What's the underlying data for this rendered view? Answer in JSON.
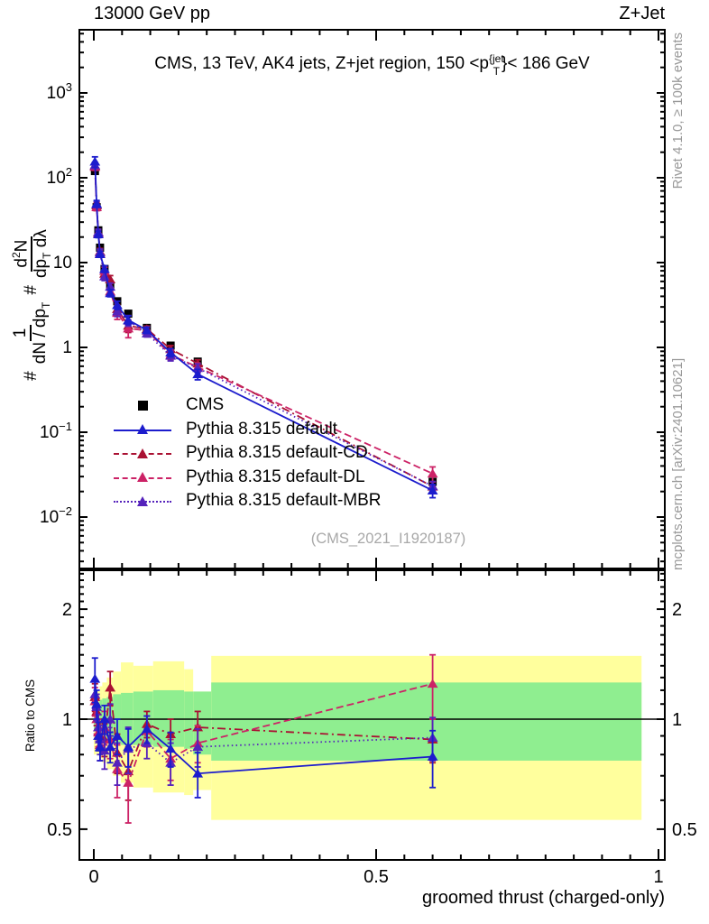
{
  "header": {
    "beam": "13000 GeV pp",
    "process": "Z+Jet"
  },
  "panel_title": {
    "pre": "CMS, 13 TeV, AK4 jets, Z+jet region, 150 <p",
    "sup": "{jet",
    "sub": "T",
    "post": "}< 186 GeV"
  },
  "watermark": "(CMS_2021_I1920187)",
  "side_notes": {
    "top": "Rivet 4.1.0, ≥ 100k events",
    "bottom": "mcplots.cern.ch [arXiv:2401.10621]"
  },
  "axes": {
    "x_label": "groomed thrust (charged-only)",
    "ratio_label": "Ratio to CMS",
    "y_formula": {
      "hash1": "#",
      "num1": "1",
      "den1_pre": "dN / dp",
      "den1_sub": "T",
      "hash2": "#",
      "num2_pre": "d",
      "num2_sup": "2",
      "num2_post": "N",
      "den2_pre": "dp",
      "den2_sub": "T",
      "den2_post": " dλ"
    }
  },
  "legend": {
    "items": [
      {
        "id": "cms",
        "label": "CMS",
        "marker": "square",
        "line": "none",
        "color": "#000000"
      },
      {
        "id": "default",
        "label": "Pythia 8.315 default",
        "marker": "triangle",
        "line": "solid",
        "color": "#1c1ccd"
      },
      {
        "id": "cd",
        "label": "Pythia 8.315 default-CD",
        "marker": "triangle",
        "line": "dashdot",
        "color": "#aa1133"
      },
      {
        "id": "dl",
        "label": "Pythia 8.315 default-DL",
        "marker": "triangle",
        "line": "dashed",
        "color": "#cc2266"
      },
      {
        "id": "mbr",
        "label": "Pythia 8.315 default-MBR",
        "marker": "triangle",
        "line": "dotted",
        "color": "#5522bb"
      }
    ]
  },
  "colors": {
    "frame": "#000000",
    "band_yellow": "#ffff9d",
    "band_green": "#8fee90",
    "gray_text": "#999999"
  },
  "chart_data": {
    "type": "line",
    "title": "CMS, 13 TeV, AK4 jets, Z+jet region, 150 < pT{jet} < 186 GeV",
    "xlabel": "groomed thrust (charged-only)",
    "x_range": [
      -0.0256,
      1.0112
    ],
    "x_ticks_major": [
      0,
      0.5,
      1
    ],
    "x_tick_labels": [
      "0",
      "0.5",
      "1"
    ],
    "x_minor_step": 0.05,
    "x": [
      0.002,
      0.005,
      0.008,
      0.011,
      0.019,
      0.029,
      0.0415,
      0.061,
      0.094,
      0.136,
      0.184,
      0.6
    ],
    "main": {
      "y_scale": "log",
      "y_range": [
        0.0025,
        5500
      ],
      "y_tick_exponents": [
        3,
        2,
        1,
        0,
        -1,
        -2
      ],
      "cms": {
        "label": "CMS",
        "values": [
          120,
          45,
          24,
          15,
          8.4,
          5.2,
          3.5,
          2.5,
          1.7,
          1.05,
          0.68,
          0.026
        ],
        "err_frac": 0.06
      },
      "series": [
        {
          "id": "cd",
          "label": "Pythia 8.315 default-CD",
          "color": "#aa1133",
          "dash": "dashdot",
          "ratio": [
            1.15,
            1.05,
            0.95,
            0.9,
            0.88,
            1.22,
            0.81,
            0.72,
            0.97,
            0.91,
            0.95,
            0.88
          ],
          "err": [
            0.1,
            0.09,
            0.08,
            0.08,
            0.09,
            0.13,
            0.1,
            0.12,
            0.08,
            0.09,
            0.1,
            0.12
          ]
        },
        {
          "id": "dl",
          "label": "Pythia 8.315 default-DL",
          "color": "#cc2266",
          "dash": "dashed",
          "ratio": [
            1.12,
            1.0,
            0.92,
            0.85,
            0.95,
            0.88,
            0.73,
            0.67,
            0.93,
            0.78,
            0.86,
            1.25
          ],
          "err": [
            0.1,
            0.09,
            0.08,
            0.08,
            0.1,
            0.1,
            0.12,
            0.15,
            0.09,
            0.1,
            0.1,
            0.25
          ]
        },
        {
          "id": "mbr",
          "label": "Pythia 8.315 default-MBR",
          "color": "#5522bb",
          "dash": "dotted",
          "ratio": [
            1.17,
            1.08,
            0.95,
            0.88,
            0.82,
            1.0,
            0.76,
            0.83,
            0.86,
            0.76,
            0.84,
            0.89
          ],
          "err": [
            0.1,
            0.09,
            0.08,
            0.08,
            0.09,
            0.1,
            0.1,
            0.12,
            0.08,
            0.1,
            0.1,
            0.12
          ]
        },
        {
          "id": "default",
          "label": "Pythia 8.315 default",
          "color": "#1c1ccd",
          "dash": "solid",
          "ratio": [
            1.29,
            1.1,
            0.9,
            0.84,
            1.0,
            0.84,
            0.9,
            0.84,
            0.94,
            0.83,
            0.71,
            0.79
          ],
          "err": [
            0.18,
            0.1,
            0.08,
            0.07,
            0.09,
            0.08,
            0.1,
            0.1,
            0.08,
            0.09,
            0.1,
            0.14
          ]
        }
      ]
    },
    "ratio": {
      "y_scale": "log",
      "y_range": [
        0.42,
        2.55
      ],
      "y_ticks": [
        2,
        1,
        0.5
      ],
      "y_tick_labels": [
        "2",
        "1",
        "0.5"
      ],
      "reference_line": 1,
      "bands": [
        {
          "x0": 0.0,
          "x1": 0.005,
          "ylo": 0.8,
          "yhi": 1.18,
          "glo": 0.93,
          "ghi": 1.12
        },
        {
          "x0": 0.005,
          "x1": 0.01,
          "ylo": 0.8,
          "yhi": 1.2,
          "glo": 0.9,
          "ghi": 1.11
        },
        {
          "x0": 0.01,
          "x1": 0.015,
          "ylo": 0.78,
          "yhi": 1.23,
          "glo": 0.89,
          "ghi": 1.13
        },
        {
          "x0": 0.015,
          "x1": 0.023,
          "ylo": 0.76,
          "yhi": 1.26,
          "glo": 0.88,
          "ghi": 1.14
        },
        {
          "x0": 0.023,
          "x1": 0.034,
          "ylo": 0.73,
          "yhi": 1.3,
          "glo": 0.87,
          "ghi": 1.15
        },
        {
          "x0": 0.034,
          "x1": 0.048,
          "ylo": 0.7,
          "yhi": 1.35,
          "glo": 0.86,
          "ghi": 1.17
        },
        {
          "x0": 0.048,
          "x1": 0.07,
          "ylo": 0.67,
          "yhi": 1.43,
          "glo": 0.85,
          "ghi": 1.18
        },
        {
          "x0": 0.07,
          "x1": 0.105,
          "ylo": 0.65,
          "yhi": 1.4,
          "glo": 0.85,
          "ghi": 1.19
        },
        {
          "x0": 0.105,
          "x1": 0.16,
          "ylo": 0.63,
          "yhi": 1.44,
          "glo": 0.84,
          "ghi": 1.2
        },
        {
          "x0": 0.16,
          "x1": 0.176,
          "ylo": 0.62,
          "yhi": 1.37,
          "glo": 0.83,
          "ghi": 1.19
        },
        {
          "x0": 0.176,
          "x1": 0.208,
          "ylo": 0.64,
          "yhi": 1.19,
          "glo": 0.8,
          "ghi": 1.19
        },
        {
          "x0": 0.208,
          "x1": 0.97,
          "ylo": 0.53,
          "yhi": 1.49,
          "glo": 0.77,
          "ghi": 1.26
        }
      ]
    }
  }
}
